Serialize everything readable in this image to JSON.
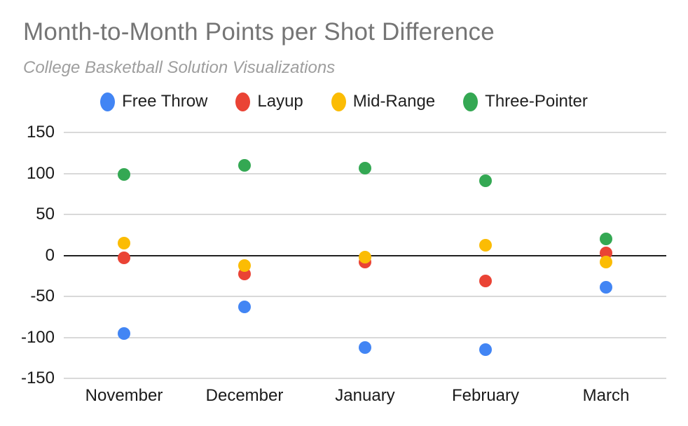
{
  "header": {
    "title": "Month-to-Month Points per Shot Difference",
    "subtitle": "College Basketball Solution Visualizations"
  },
  "chart_data": {
    "type": "scatter",
    "title": "Month-to-Month Points per Shot Difference",
    "subtitle": "College Basketball Solution Visualizations",
    "categories": [
      "November",
      "December",
      "January",
      "February",
      "March"
    ],
    "series": [
      {
        "name": "Free Throw",
        "color": "#4285F4",
        "values": [
          -95,
          -63,
          -112,
          -115,
          -39
        ]
      },
      {
        "name": "Layup",
        "color": "#EA4335",
        "values": [
          -3,
          -23,
          -8,
          -31,
          3
        ]
      },
      {
        "name": "Mid-Range",
        "color": "#FBBC04",
        "values": [
          15,
          -12,
          -2,
          12,
          -8
        ]
      },
      {
        "name": "Three-Pointer",
        "color": "#34A853",
        "values": [
          99,
          110,
          106,
          91,
          20
        ]
      }
    ],
    "xlabel": "",
    "ylabel": "",
    "ylim": [
      -150,
      150
    ],
    "yticks": [
      150,
      100,
      50,
      0,
      -50,
      -100,
      -150
    ],
    "grid": true,
    "zero_line": true,
    "legend_position": "top"
  },
  "colors": {
    "background": "#ffffff",
    "title_text": "#757575",
    "subtitle_text": "#9e9e9e",
    "axis_text": "#1a1a1a",
    "legend_text": "#212121",
    "gridline": "#d9d9d9",
    "zero_line": "#212121"
  }
}
